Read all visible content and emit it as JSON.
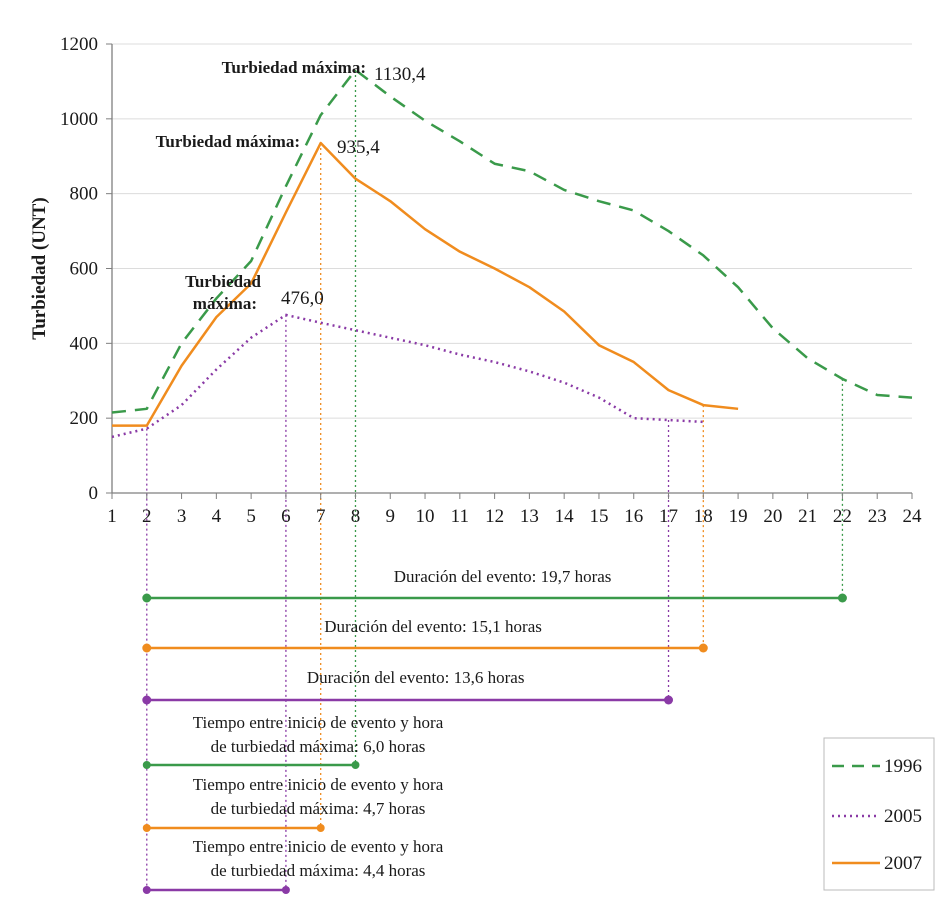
{
  "chart_data": {
    "type": "line",
    "ylabel": "Turbiedad  (UNT)",
    "xlabel": "",
    "x": [
      1,
      2,
      3,
      4,
      5,
      6,
      7,
      8,
      9,
      10,
      11,
      12,
      13,
      14,
      15,
      16,
      17,
      18,
      19,
      20,
      21,
      22,
      23,
      24
    ],
    "ylim": [
      0,
      1200
    ],
    "yticks": [
      0,
      200,
      400,
      600,
      800,
      1000,
      1200
    ],
    "grid": true,
    "legend_position": "bottom-right",
    "series": [
      {
        "name": "1996",
        "color": "#3a9a4a",
        "style": "dashed",
        "x": [
          1,
          2,
          3,
          4,
          5,
          6,
          7,
          8,
          9,
          10,
          11,
          12,
          13,
          14,
          15,
          16,
          17,
          18,
          19,
          20,
          21,
          22,
          23,
          24
        ],
        "values": [
          215,
          225,
          400,
          520,
          620,
          820,
          1010,
          1130.4,
          1060,
          995,
          940,
          880,
          860,
          810,
          780,
          755,
          700,
          635,
          550,
          440,
          360,
          305,
          262,
          255
        ]
      },
      {
        "name": "2005",
        "color": "#8a3aa6",
        "style": "dotted",
        "x": [
          1,
          2,
          3,
          4,
          5,
          6,
          7,
          8,
          9,
          10,
          11,
          12,
          13,
          14,
          15,
          16,
          17,
          18
        ],
        "values": [
          150,
          172,
          235,
          330,
          415,
          476.0,
          455,
          435,
          415,
          395,
          370,
          350,
          325,
          295,
          255,
          200,
          195,
          190
        ]
      },
      {
        "name": "2007",
        "color": "#f08c1e",
        "style": "solid",
        "x": [
          1,
          2,
          3,
          4,
          5,
          6,
          7,
          8,
          9,
          10,
          11,
          12,
          13,
          14,
          15,
          16,
          17,
          18,
          19
        ],
        "values": [
          180,
          180,
          340,
          470,
          560,
          750,
          935.4,
          840,
          780,
          705,
          645,
          600,
          550,
          485,
          395,
          350,
          275,
          235,
          225
        ]
      }
    ],
    "annotations": [
      {
        "label": "Turbiedad máxima:",
        "value": "1130,4",
        "x": 8,
        "y": 1130.4
      },
      {
        "label": "Turbiedad máxima:",
        "value": "935,4",
        "x": 7,
        "y": 935.4
      },
      {
        "label_line1": "Turbiedad",
        "label_line2": "máxima:",
        "value": "476,0",
        "x": 6,
        "y": 476.0
      }
    ],
    "event_durations": [
      {
        "series": "1996",
        "label": "Duración del evento: 19,7 horas",
        "start": 2,
        "end": 22
      },
      {
        "series": "2007",
        "label": "Duración del evento: 15,1 horas",
        "start": 2,
        "end": 18
      },
      {
        "series": "2005",
        "label": "Duración del evento: 13,6 horas",
        "start": 2,
        "end": 17
      }
    ],
    "time_to_peak": [
      {
        "series": "1996",
        "line1": "Tiempo entre inicio de evento y hora",
        "line2": "de turbiedad máxima: 6,0 horas",
        "start": 2,
        "end": 8
      },
      {
        "series": "2007",
        "line1": "Tiempo entre inicio de evento y hora",
        "line2": "de turbiedad máxima: 4,7 horas",
        "start": 2,
        "end": 7
      },
      {
        "series": "2005",
        "line1": "Tiempo entre inicio de evento y hora",
        "line2": "de turbiedad máxima: 4,4 horas",
        "start": 2,
        "end": 6
      }
    ]
  }
}
